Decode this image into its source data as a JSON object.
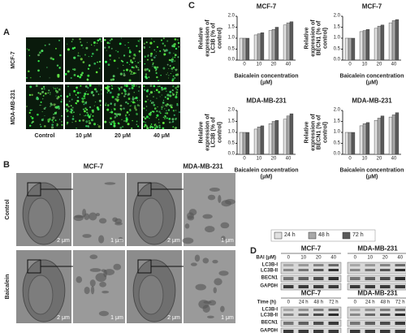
{
  "panel_a": {
    "label": "A",
    "rows": [
      "MCF-7",
      "MDA-MB-231"
    ],
    "columns": [
      "Control",
      "10 μM",
      "20 μM",
      "40 μM"
    ]
  },
  "panel_b": {
    "label": "B",
    "columns": [
      "MCF-7",
      "MDA-MB-231"
    ],
    "rows": [
      "Control",
      "Baicalein"
    ],
    "scale_bars": [
      "2 μm",
      "1 μm"
    ]
  },
  "panel_c": {
    "label": "C"
  },
  "panel_d": {
    "label": "D",
    "blots": [
      {
        "groups": [
          "MCF-7",
          "MDA-MB-231"
        ],
        "axis_label": "BAI (μM)",
        "lanes": [
          "0",
          "10",
          "20",
          "40"
        ],
        "rows": [
          "LC3B-I",
          "LC3B-II",
          "BECN1",
          "GAPDH"
        ]
      },
      {
        "groups": [
          "MCF-7",
          "MDA-MB-231"
        ],
        "axis_label": "Time (h)",
        "lanes": [
          "0",
          "24 h",
          "48 h",
          "72 h"
        ],
        "rows": [
          "LC3B-I",
          "LC3B-II",
          "BECN1",
          "GAPDH"
        ]
      }
    ]
  },
  "chart_data": [
    {
      "type": "bar",
      "title": "MCF-7",
      "ylabel": "Relative expression of LC3B (% of control)",
      "xlabel": "Baicalein concentration (μM)",
      "categories": [
        "0",
        "10",
        "20",
        "40"
      ],
      "ylim": [
        0,
        2
      ],
      "yticks": [
        {
          "value": 0,
          "label": "0.0"
        },
        {
          "value": 0.5,
          "label": "0.5"
        },
        {
          "value": 1,
          "label": "1.0"
        },
        {
          "value": 1.5,
          "label": "1.5"
        },
        {
          "value": 2,
          "label": "2.0"
        }
      ],
      "series": [
        {
          "name": "24 h",
          "color": "#e0e0e0",
          "values": [
            1.0,
            1.15,
            1.35,
            1.6
          ]
        },
        {
          "name": "48 h",
          "color": "#a8a8a8",
          "values": [
            1.0,
            1.2,
            1.4,
            1.7
          ]
        },
        {
          "name": "72 h",
          "color": "#5a5a5a",
          "values": [
            1.0,
            1.25,
            1.5,
            1.75
          ]
        }
      ]
    },
    {
      "type": "bar",
      "title": "MCF-7",
      "ylabel": "Relative expression of BECN1 (% of control)",
      "xlabel": "Baicalein concentration (μM)",
      "categories": [
        "0",
        "10",
        "20",
        "40"
      ],
      "ylim": [
        0,
        2
      ],
      "yticks": [
        {
          "value": 0,
          "label": "0.0"
        },
        {
          "value": 0.5,
          "label": "0.5"
        },
        {
          "value": 1,
          "label": "1.0"
        },
        {
          "value": 1.5,
          "label": "1.5"
        },
        {
          "value": 2,
          "label": "2.0"
        }
      ],
      "series": [
        {
          "color": "#e0e0e0",
          "values": [
            1.0,
            1.3,
            1.45,
            1.7
          ]
        },
        {
          "color": "#a8a8a8",
          "values": [
            1.0,
            1.35,
            1.55,
            1.8
          ]
        },
        {
          "color": "#5a5a5a",
          "values": [
            1.0,
            1.4,
            1.6,
            1.85
          ]
        }
      ]
    },
    {
      "type": "bar",
      "title": "MDA-MB-231",
      "ylabel": "Relative expression of LC3B (% of control)",
      "xlabel": "Baicalein concentration (μM)",
      "categories": [
        "0",
        "10",
        "20",
        "40"
      ],
      "ylim": [
        0,
        2
      ],
      "yticks": [
        {
          "value": 0,
          "label": "0.0"
        },
        {
          "value": 0.5,
          "label": "0.5"
        },
        {
          "value": 1,
          "label": "1.0"
        },
        {
          "value": 1.5,
          "label": "1.5"
        },
        {
          "value": 2,
          "label": "2.0"
        }
      ],
      "series": [
        {
          "color": "#e0e0e0",
          "values": [
            1.0,
            1.15,
            1.4,
            1.6
          ]
        },
        {
          "color": "#a8a8a8",
          "values": [
            1.0,
            1.25,
            1.5,
            1.75
          ]
        },
        {
          "color": "#5a5a5a",
          "values": [
            1.0,
            1.3,
            1.55,
            1.85
          ]
        }
      ]
    },
    {
      "type": "bar",
      "title": "MDA-MB-231",
      "ylabel": "Relative expression of BECN1 (% of control)",
      "xlabel": "Baicalein concentration (μM)",
      "categories": [
        "0",
        "10",
        "20",
        "40"
      ],
      "ylim": [
        0,
        2
      ],
      "yticks": [
        {
          "value": 0,
          "label": "0.0"
        },
        {
          "value": 0.5,
          "label": "0.5"
        },
        {
          "value": 1,
          "label": "1.0"
        },
        {
          "value": 1.5,
          "label": "1.5"
        },
        {
          "value": 2,
          "label": "2.0"
        }
      ],
      "series": [
        {
          "color": "#e0e0e0",
          "values": [
            1.0,
            1.3,
            1.55,
            1.7
          ]
        },
        {
          "color": "#a8a8a8",
          "values": [
            1.0,
            1.4,
            1.65,
            1.8
          ]
        },
        {
          "color": "#5a5a5a",
          "values": [
            1.0,
            1.45,
            1.75,
            1.9
          ]
        }
      ]
    }
  ]
}
